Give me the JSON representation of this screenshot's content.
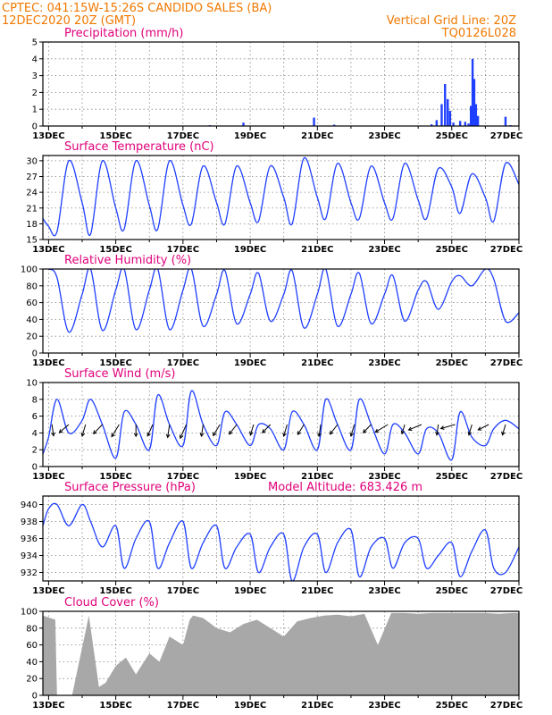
{
  "header": {
    "line1": "CPTEC:   041:15W-15:26S   CANDIDO SALES (BA)",
    "line2": "12DEC2020 20Z (GMT)",
    "grid_note": "Vertical Grid Line: 20Z",
    "code": "TQ0126L028"
  },
  "colors": {
    "line": "#1f3fff",
    "cloud": "#a8a8a8",
    "title": "#e0007a",
    "header": "#f07800"
  },
  "chart_data": [
    {
      "type": "bar",
      "title": "Precipitation (mm/h)",
      "x_tick_labels": [
        "13DEC",
        "15DEC",
        "17DEC",
        "19DEC",
        "21DEC",
        "23DEC",
        "25DEC",
        "27DEC"
      ],
      "x_range_days": [
        12.83,
        27.0
      ],
      "ylim": [
        0,
        5
      ],
      "yticks": [
        0,
        1,
        2,
        3,
        4,
        5
      ],
      "grid": true,
      "x": [
        13.5,
        17.8,
        18.8,
        20.9,
        21.5,
        24.4,
        24.55,
        24.7,
        24.8,
        24.88,
        24.95,
        25.05,
        25.25,
        25.4,
        25.5,
        25.57,
        25.62,
        25.67,
        25.72,
        25.78,
        26.6,
        26.75
      ],
      "values": [
        0.02,
        0.05,
        0.2,
        0.5,
        0.08,
        0.1,
        0.35,
        1.3,
        2.5,
        1.6,
        0.9,
        0.2,
        0.3,
        0.25,
        0.15,
        1.2,
        4.0,
        2.8,
        1.3,
        0.6,
        0.55,
        0.05
      ]
    },
    {
      "type": "line",
      "title": "Surface Temperature (nC)",
      "x_tick_labels": [
        "13DEC",
        "15DEC",
        "17DEC",
        "19DEC",
        "21DEC",
        "23DEC",
        "25DEC",
        "27DEC"
      ],
      "x_range_days": [
        12.83,
        27.0
      ],
      "ylim": [
        15,
        31
      ],
      "yticks": [
        15,
        18,
        21,
        24,
        27,
        30
      ],
      "grid": true,
      "x": [
        12.83,
        13.0,
        13.25,
        13.6,
        14.0,
        14.25,
        14.6,
        15.0,
        15.25,
        15.6,
        16.0,
        16.25,
        16.6,
        17.0,
        17.25,
        17.6,
        18.0,
        18.25,
        18.6,
        19.0,
        19.25,
        19.6,
        20.0,
        20.25,
        20.6,
        21.0,
        21.25,
        21.6,
        22.0,
        22.25,
        22.6,
        23.0,
        23.25,
        23.6,
        24.0,
        24.25,
        24.6,
        25.0,
        25.25,
        25.6,
        26.0,
        26.25,
        26.6,
        27.0
      ],
      "values": [
        19,
        17.5,
        16.5,
        30,
        22,
        16,
        30,
        21,
        17,
        30,
        21.5,
        17,
        30,
        21.5,
        18,
        29,
        22,
        18,
        29,
        22,
        18.5,
        29,
        23,
        18,
        30.5,
        23,
        19,
        29.5,
        22,
        19,
        29,
        22,
        19,
        29.5,
        22.5,
        19,
        28.5,
        25,
        20,
        27.5,
        23,
        18.5,
        29.5,
        25.5
      ]
    },
    {
      "type": "line",
      "title": "Relative Humidity (%)",
      "x_tick_labels": [
        "13DEC",
        "15DEC",
        "17DEC",
        "19DEC",
        "21DEC",
        "23DEC",
        "25DEC",
        "27DEC"
      ],
      "x_range_days": [
        12.83,
        27.0
      ],
      "ylim": [
        0,
        100
      ],
      "yticks": [
        0,
        20,
        40,
        60,
        80,
        100
      ],
      "grid": true,
      "x": [
        12.83,
        13.0,
        13.25,
        13.6,
        14.0,
        14.25,
        14.6,
        15.0,
        15.25,
        15.6,
        16.0,
        16.25,
        16.6,
        17.0,
        17.25,
        17.6,
        18.0,
        18.25,
        18.6,
        19.0,
        19.25,
        19.6,
        20.0,
        20.25,
        20.6,
        21.0,
        21.25,
        21.6,
        22.0,
        22.25,
        22.6,
        23.0,
        23.25,
        23.6,
        24.0,
        24.25,
        24.6,
        25.0,
        25.25,
        25.6,
        26.0,
        26.25,
        26.6,
        27.0
      ],
      "values": [
        100,
        100,
        90,
        25,
        70,
        100,
        27,
        75,
        100,
        28,
        75,
        100,
        28,
        75,
        100,
        32,
        70,
        98,
        35,
        70,
        95,
        38,
        70,
        98,
        30,
        70,
        100,
        32,
        70,
        95,
        35,
        70,
        92,
        38,
        75,
        85,
        52,
        85,
        92,
        80,
        100,
        88,
        38,
        48
      ]
    },
    {
      "type": "line",
      "title": "Surface Wind (m/s)",
      "x_tick_labels": [
        "13DEC",
        "15DEC",
        "17DEC",
        "19DEC",
        "21DEC",
        "23DEC",
        "25DEC",
        "27DEC"
      ],
      "x_range_days": [
        12.83,
        27.0
      ],
      "ylim": [
        0,
        10
      ],
      "yticks": [
        0,
        2,
        4,
        6,
        8,
        10
      ],
      "grid": true,
      "x": [
        12.83,
        13.0,
        13.25,
        13.6,
        14.0,
        14.25,
        14.6,
        15.0,
        15.25,
        15.6,
        16.0,
        16.25,
        16.6,
        17.0,
        17.25,
        17.6,
        18.0,
        18.25,
        18.6,
        19.0,
        19.25,
        19.6,
        20.0,
        20.25,
        20.6,
        21.0,
        21.25,
        21.6,
        22.0,
        22.25,
        22.6,
        23.0,
        23.25,
        23.6,
        24.0,
        24.25,
        24.6,
        25.0,
        25.25,
        25.6,
        26.0,
        26.25,
        26.6,
        27.0
      ],
      "values": [
        1.5,
        3.5,
        8,
        4,
        5.5,
        8,
        5,
        1,
        6.5,
        5,
        2,
        8.5,
        5,
        2.5,
        9,
        5,
        2.5,
        6.5,
        5,
        2.5,
        5,
        4.5,
        2,
        6.5,
        5,
        2,
        8,
        5,
        2,
        8,
        5,
        1.5,
        5,
        4,
        1.5,
        4.5,
        4,
        0.8,
        6.5,
        3.5,
        2.5,
        4.5,
        5.5,
        4.5
      ],
      "barbs": [
        {
          "x": 13.1,
          "speed": 4.8,
          "direction_deg": 95
        },
        {
          "x": 13.6,
          "speed": 4.2,
          "direction_deg": 55
        },
        {
          "x": 14.1,
          "speed": 5,
          "direction_deg": 80
        },
        {
          "x": 14.6,
          "speed": 4.5,
          "direction_deg": 60
        },
        {
          "x": 15.1,
          "speed": 5.5,
          "direction_deg": 70
        },
        {
          "x": 15.6,
          "speed": 5,
          "direction_deg": 90
        },
        {
          "x": 16.1,
          "speed": 5,
          "direction_deg": 75
        },
        {
          "x": 16.6,
          "speed": 5.5,
          "direction_deg": 85
        },
        {
          "x": 17.1,
          "speed": 6,
          "direction_deg": 75
        },
        {
          "x": 17.6,
          "speed": 5,
          "direction_deg": 85
        },
        {
          "x": 18.1,
          "speed": 5,
          "direction_deg": 70
        },
        {
          "x": 18.6,
          "speed": 4.5,
          "direction_deg": 65
        },
        {
          "x": 19.1,
          "speed": 4.5,
          "direction_deg": 80
        },
        {
          "x": 19.6,
          "speed": 4,
          "direction_deg": 60
        },
        {
          "x": 20.1,
          "speed": 5,
          "direction_deg": 80
        },
        {
          "x": 20.6,
          "speed": 4.5,
          "direction_deg": 70
        },
        {
          "x": 21.1,
          "speed": 5,
          "direction_deg": 85
        },
        {
          "x": 21.6,
          "speed": 4.5,
          "direction_deg": 65
        },
        {
          "x": 22.1,
          "speed": 5,
          "direction_deg": 80
        },
        {
          "x": 22.6,
          "speed": 4,
          "direction_deg": 60
        },
        {
          "x": 23.1,
          "speed": 4.5,
          "direction_deg": 45
        },
        {
          "x": 23.6,
          "speed": 4,
          "direction_deg": 80
        },
        {
          "x": 24.1,
          "speed": 4,
          "direction_deg": 35
        },
        {
          "x": 24.6,
          "speed": 4.5,
          "direction_deg": 85
        },
        {
          "x": 25.1,
          "speed": 4,
          "direction_deg": 25
        },
        {
          "x": 25.6,
          "speed": 4.5,
          "direction_deg": 80
        },
        {
          "x": 26.1,
          "speed": 3.5,
          "direction_deg": 40
        },
        {
          "x": 26.6,
          "speed": 4.5,
          "direction_deg": 80
        }
      ]
    },
    {
      "type": "line",
      "title": "Surface Pressure (hPa)",
      "annotation": "Model Altitude: 683.426 m",
      "x_tick_labels": [
        "13DEC",
        "15DEC",
        "17DEC",
        "19DEC",
        "21DEC",
        "23DEC",
        "25DEC",
        "27DEC"
      ],
      "x_range_days": [
        12.83,
        27.0
      ],
      "ylim": [
        931,
        941
      ],
      "yticks": [
        932,
        934,
        936,
        938,
        940
      ],
      "grid": true,
      "x": [
        12.83,
        13.0,
        13.25,
        13.6,
        14.0,
        14.25,
        14.6,
        15.0,
        15.25,
        15.6,
        16.0,
        16.25,
        16.6,
        17.0,
        17.25,
        17.6,
        18.0,
        18.25,
        18.6,
        19.0,
        19.25,
        19.6,
        20.0,
        20.25,
        20.6,
        21.0,
        21.25,
        21.6,
        22.0,
        22.25,
        22.6,
        23.0,
        23.25,
        23.6,
        24.0,
        24.25,
        24.6,
        25.0,
        25.25,
        25.6,
        26.0,
        26.25,
        26.6,
        27.0
      ],
      "values": [
        937.5,
        939.5,
        940,
        937.5,
        940,
        938,
        935,
        937.5,
        932.5,
        936,
        938,
        932.5,
        935.5,
        938,
        932.5,
        935.5,
        937.5,
        932.5,
        935,
        936.5,
        932,
        935,
        936.5,
        931,
        935,
        936.5,
        932,
        935.5,
        937,
        931.5,
        935,
        936,
        932.5,
        935.5,
        936,
        932.5,
        934,
        935.5,
        931.5,
        934.5,
        937,
        932.5,
        932,
        935
      ]
    },
    {
      "type": "area",
      "title": "Cloud Cover (%)",
      "x_tick_labels": [
        "13DEC",
        "15DEC",
        "17DEC",
        "19DEC",
        "21DEC",
        "23DEC",
        "25DEC",
        "27DEC"
      ],
      "x_range_days": [
        12.83,
        27.0
      ],
      "ylim": [
        0,
        100
      ],
      "yticks": [
        0,
        20,
        40,
        60,
        80,
        100
      ],
      "grid": true,
      "x": [
        12.83,
        13.2,
        13.25,
        13.7,
        14.2,
        14.5,
        14.7,
        15.0,
        15.3,
        15.6,
        16.0,
        16.3,
        16.6,
        17.0,
        17.2,
        17.3,
        17.6,
        18.0,
        18.4,
        18.8,
        19.2,
        19.6,
        20.0,
        20.4,
        20.8,
        21.2,
        21.6,
        22.0,
        22.4,
        22.8,
        23.2,
        23.6,
        24.0,
        24.4,
        24.8,
        25.2,
        25.6,
        26.0,
        26.4,
        26.8,
        27.0
      ],
      "values": [
        95,
        90,
        0,
        0,
        95,
        10,
        15,
        35,
        45,
        25,
        50,
        40,
        70,
        60,
        90,
        95,
        92,
        80,
        75,
        85,
        90,
        80,
        70,
        88,
        92,
        95,
        96,
        94,
        97,
        60,
        98,
        98,
        97,
        98,
        98,
        98,
        98,
        98,
        97,
        98,
        98
      ]
    }
  ]
}
